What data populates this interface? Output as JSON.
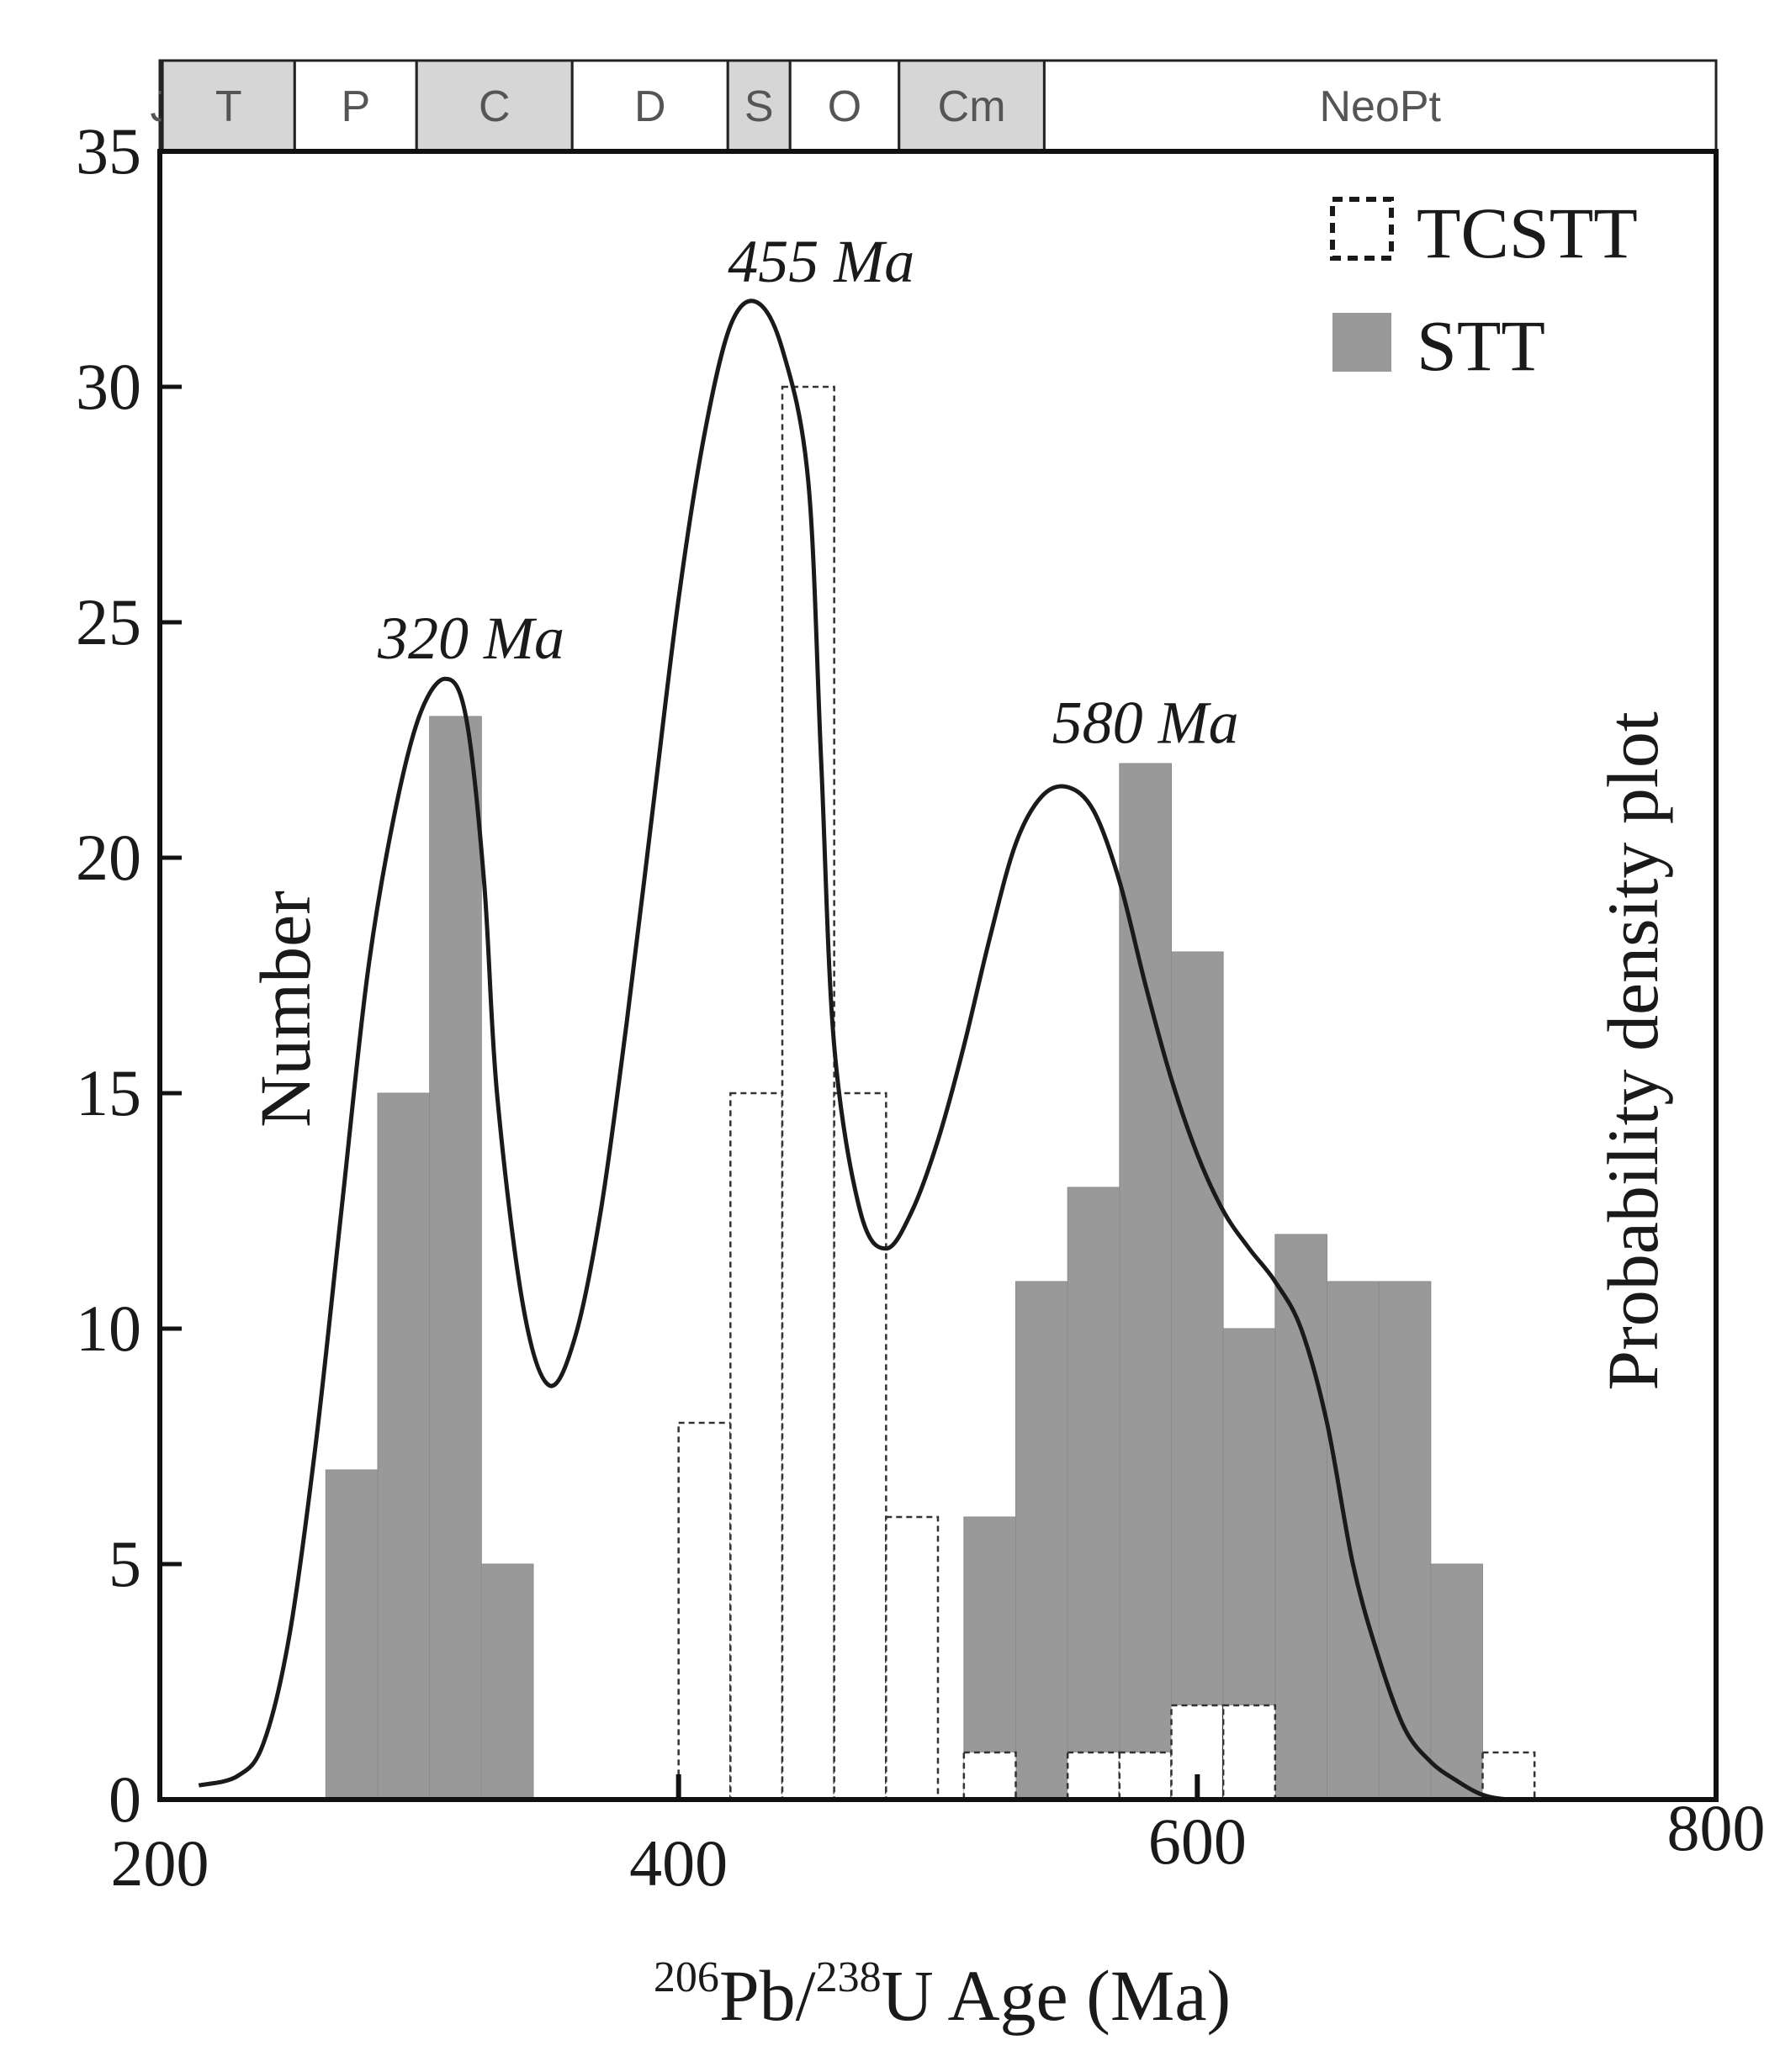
{
  "chart_data": {
    "type": "bar",
    "xlabel": {
      "sup1": "206",
      "part1": "Pb/",
      "sup2": "238",
      "part2": "U Age (Ma)"
    },
    "ylabel": "Number",
    "ylabel_right": "Probability density plot",
    "xlim": [
      200,
      800
    ],
    "ylim": [
      0,
      35
    ],
    "xticks": [
      "200",
      "400",
      "600",
      "800"
    ],
    "yticks": [
      "0",
      "5",
      "10",
      "15",
      "20",
      "25",
      "30",
      "35"
    ],
    "bin_width": 20,
    "series": [
      {
        "name": "STT",
        "style": "filled",
        "color": "#999999",
        "bins": [
          {
            "start": 264,
            "value": 7
          },
          {
            "start": 284,
            "value": 15
          },
          {
            "start": 304,
            "value": 23
          },
          {
            "start": 324,
            "value": 5
          },
          {
            "start": 510,
            "value": 6
          },
          {
            "start": 530,
            "value": 11
          },
          {
            "start": 550,
            "value": 13
          },
          {
            "start": 570,
            "value": 22
          },
          {
            "start": 590,
            "value": 18
          },
          {
            "start": 610,
            "value": 10
          },
          {
            "start": 630,
            "value": 12
          },
          {
            "start": 650,
            "value": 11
          },
          {
            "start": 670,
            "value": 11
          },
          {
            "start": 690,
            "value": 5
          }
        ]
      },
      {
        "name": "TCSTT",
        "style": "dashed-outline",
        "color": "#ffffff",
        "bins": [
          {
            "start": 400,
            "value": 8
          },
          {
            "start": 420,
            "value": 15
          },
          {
            "start": 440,
            "value": 30
          },
          {
            "start": 460,
            "value": 15
          },
          {
            "start": 480,
            "value": 6
          },
          {
            "start": 510,
            "value": 1
          },
          {
            "start": 550,
            "value": 1
          },
          {
            "start": 570,
            "value": 1
          },
          {
            "start": 590,
            "value": 2
          },
          {
            "start": 610,
            "value": 2
          },
          {
            "start": 710,
            "value": 1
          }
        ]
      }
    ],
    "density_curve": {
      "x": [
        215,
        230,
        240,
        250,
        260,
        270,
        280,
        290,
        300,
        310,
        318,
        325,
        330,
        340,
        350,
        360,
        370,
        380,
        390,
        400,
        410,
        420,
        430,
        440,
        450,
        455,
        460,
        470,
        480,
        490,
        500,
        510,
        520,
        530,
        540,
        550,
        560,
        570,
        580,
        590,
        600,
        610,
        620,
        630,
        640,
        650,
        660,
        670,
        680,
        690,
        700,
        710,
        720,
        730,
        750,
        780,
        800
      ],
      "y": [
        0.3,
        0.5,
        1.2,
        3.5,
        7.5,
        12.5,
        17.5,
        20.8,
        23.0,
        23.8,
        23.0,
        19.5,
        15.0,
        10.5,
        8.8,
        9.8,
        12.5,
        16.5,
        21.0,
        25.5,
        29.0,
        31.3,
        31.8,
        30.8,
        28.0,
        22.0,
        16.0,
        12.5,
        11.7,
        12.5,
        14.0,
        16.0,
        18.3,
        20.3,
        21.3,
        21.5,
        21.0,
        19.5,
        17.3,
        15.3,
        13.7,
        12.5,
        11.7,
        11.0,
        10.0,
        8.0,
        5.0,
        3.0,
        1.5,
        0.8,
        0.4,
        0.1,
        0.0,
        0.0,
        0.0,
        0.0,
        0.0
      ],
      "color": "#1a1a1a"
    },
    "annotations": [
      {
        "text": "320 Ma",
        "x": 320,
        "y": 24.2
      },
      {
        "text": "455 Ma",
        "x": 455,
        "y": 32.2
      },
      {
        "text": "580 Ma",
        "x": 580,
        "y": 22.4
      }
    ],
    "legend_position": "top-right",
    "geologic_timescale": [
      {
        "label": "J",
        "start": 177,
        "end": 201,
        "shaded": false
      },
      {
        "label": "T",
        "start": 201,
        "end": 252,
        "shaded": true
      },
      {
        "label": "P",
        "start": 252,
        "end": 299,
        "shaded": false
      },
      {
        "label": "C",
        "start": 299,
        "end": 359,
        "shaded": true
      },
      {
        "label": "D",
        "start": 359,
        "end": 419,
        "shaded": false
      },
      {
        "label": "S",
        "start": 419,
        "end": 443,
        "shaded": true
      },
      {
        "label": "O",
        "start": 443,
        "end": 485,
        "shaded": false
      },
      {
        "label": "Cm",
        "start": 485,
        "end": 541,
        "shaded": true
      },
      {
        "label": "NeoPt",
        "start": 541,
        "end": 1000,
        "shaded": false
      }
    ]
  }
}
